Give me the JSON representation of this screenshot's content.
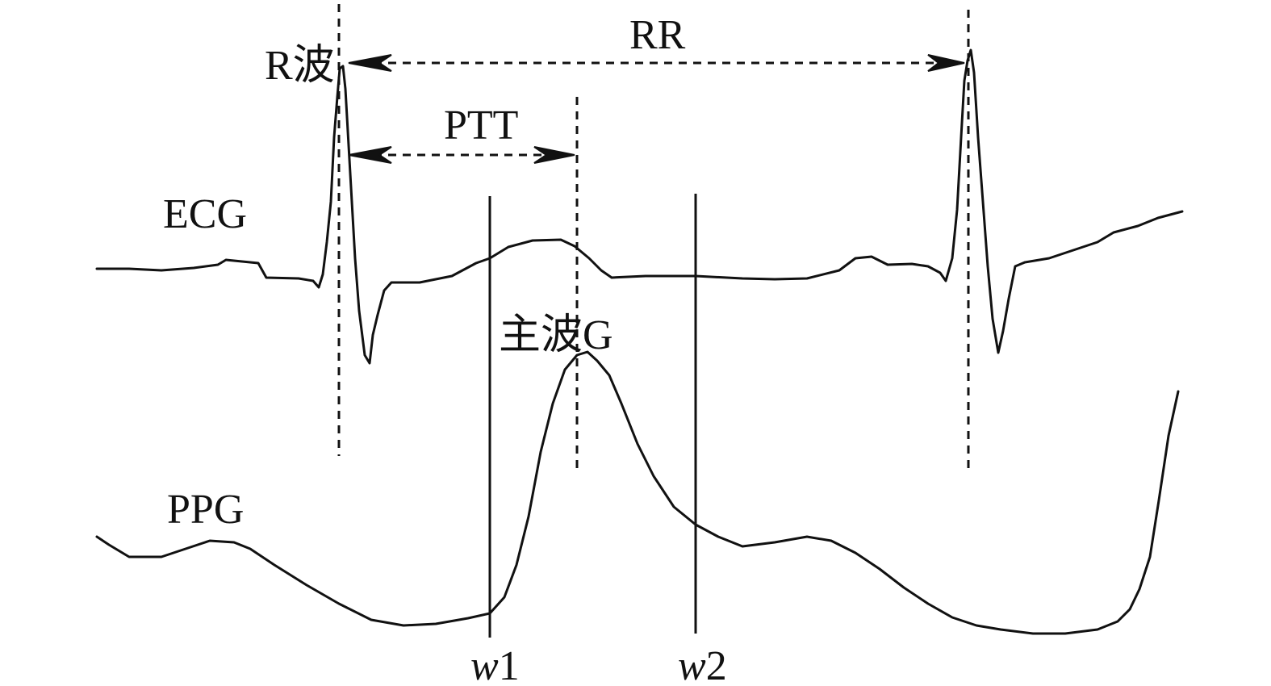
{
  "labels": {
    "r_wave": "R波",
    "rr": "RR",
    "ptt": "PTT",
    "ecg": "ECG",
    "main_wave": "主波G",
    "ppg": "PPG",
    "w1_letter": "w",
    "w1_number": "1",
    "w2_letter": "w",
    "w2_number": "2"
  },
  "colors": {
    "ink": "#111111",
    "background": "#ffffff"
  }
}
